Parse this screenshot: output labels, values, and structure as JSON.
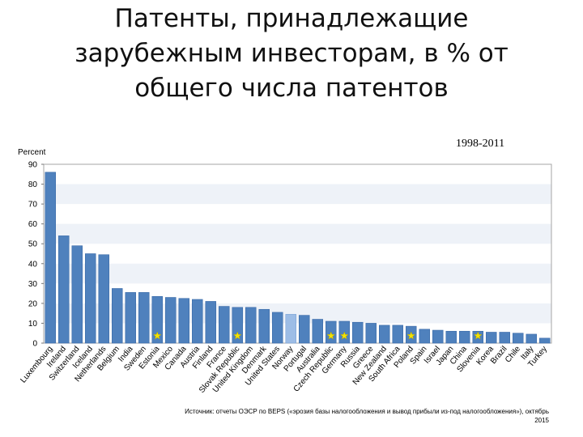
{
  "page": {
    "title": "Патенты, принадлежащие зарубежным инвесторам, в % от общего числа патентов",
    "title_lines": [
      "Патенты, принадлежащие",
      "зарубежным инвесторам, в % от",
      "общего числа патентов"
    ],
    "period": "1998-2011",
    "source_lines": [
      "Источник: отчеты ОЭСР по BEPS («эрозия базы налогообложения и вывод прибыли из-под налогообложения»), октябрь",
      "2015"
    ]
  },
  "colors": {
    "bar": "#4f81bd",
    "bar_dark": "#3a6aa8",
    "highlight_bar": "#9dbde6",
    "star": "#f2e200",
    "plot_border": "#a6a6a6",
    "grid_band": "#eef2f8"
  },
  "chart_data": {
    "type": "bar",
    "ylabel": "Percent",
    "ylim": [
      0,
      90
    ],
    "yticks": [
      0,
      10,
      20,
      30,
      40,
      50,
      60,
      70,
      80,
      90
    ],
    "grid": false,
    "categories": [
      "Luxembourg",
      "Ireland",
      "Switzerland",
      "Iceland",
      "Netherlands",
      "Belgium",
      "India",
      "Sweden",
      "Estonia",
      "Mexico",
      "Canada",
      "Austria",
      "Finland",
      "France",
      "Slovak Republic",
      "United Kingdom",
      "Denmark",
      "United States",
      "Norway",
      "Portugal",
      "Australia",
      "Czech Republic",
      "Germany",
      "Russia",
      "Greece",
      "New Zealand",
      "South Africa",
      "Poland",
      "Spain",
      "Israel",
      "Japan",
      "China",
      "Slovenia",
      "Korea",
      "Brazil",
      "Chile",
      "Italy",
      "Turkey"
    ],
    "values": [
      86,
      54,
      49,
      45,
      44.5,
      27.5,
      25.5,
      25.5,
      23.5,
      23,
      22.5,
      22,
      21,
      18.5,
      18,
      18,
      17,
      15.5,
      14.5,
      14,
      12,
      11,
      11,
      10.5,
      10,
      9,
      9,
      8.5,
      7,
      6.5,
      6,
      6,
      6,
      5.5,
      5.5,
      5,
      4.5,
      2.5
    ],
    "highlighted": [
      "Norway"
    ],
    "starred": [
      "Estonia",
      "Slovak Republic",
      "Czech Republic",
      "Germany",
      "Poland",
      "Slovenia"
    ]
  }
}
